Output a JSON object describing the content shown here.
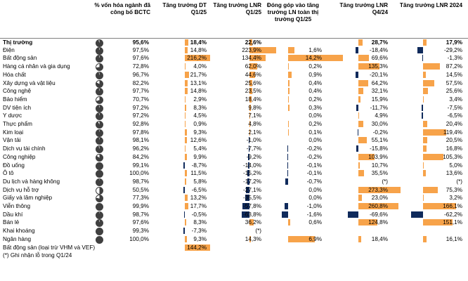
{
  "headers": {
    "pct_cap": "% vốn hóa ngành đã công bố BCTC",
    "rev_growth": "Tăng trưởng DT Q1/25",
    "npat_growth": "Tăng trưởng LNR Q1/25",
    "contribution": "Đóng góp vào tăng trưởng LN toàn thị trường Q1/25",
    "npat_q4": "Tăng trưởng LNR Q4/24",
    "npat_2024": "Tăng trưởng LNR 2024"
  },
  "colors": {
    "positive": "#f7a34a",
    "negative": "#0f2a5b",
    "pie_fill": "#404040"
  },
  "rows": [
    {
      "name": "Thị trường",
      "pct_cap": "95,6%",
      "pct_cap_value": 95.6,
      "dt": "18,4%",
      "dt_value": 18.4,
      "lnr": "22,6%",
      "lnr_value": 22.6,
      "contrib": "",
      "contrib_value": 0,
      "q4": "28,7%",
      "q4_value": 28.7,
      "y24": "17,9%",
      "y24_value": 17.9
    },
    {
      "name": "Điện",
      "pct_cap": "97,5%",
      "pct_cap_value": 97.5,
      "dt": "14,8%",
      "dt_value": 14.8,
      "lnr": "223,9%",
      "lnr_value": 223.9,
      "contrib": "1,6%",
      "contrib_value": 1.6,
      "q4": "-18,4%",
      "q4_value": -18.4,
      "y24": "-29,2%",
      "y24_value": -29.2
    },
    {
      "name": "Bất động sản",
      "pct_cap": "97,6%",
      "pct_cap_value": 97.6,
      "dt": "216,2%",
      "dt_value": 216.2,
      "lnr": "134,4%",
      "lnr_value": 134.4,
      "contrib": "14,2%",
      "contrib_value": 14.2,
      "q4": "69,6%",
      "q4_value": 69.6,
      "y24": "-1,3%",
      "y24_value": -1.3
    },
    {
      "name": "Hàng cá nhân và gia dụng",
      "pct_cap": "72,8%",
      "pct_cap_value": 72.8,
      "dt": "4,0%",
      "dt_value": 4.0,
      "lnr": "62,0%",
      "lnr_value": 62.0,
      "contrib": "0,2%",
      "contrib_value": 0.2,
      "q4": "135,3%",
      "q4_value": 135.3,
      "y24": "87,2%",
      "y24_value": 87.2
    },
    {
      "name": "Hóa chất",
      "pct_cap": "96,7%",
      "pct_cap_value": 96.7,
      "dt": "21,7%",
      "dt_value": 21.7,
      "lnr": "44,6%",
      "lnr_value": 44.6,
      "contrib": "0,9%",
      "contrib_value": 0.9,
      "q4": "-20,1%",
      "q4_value": -20.1,
      "y24": "14,5%",
      "y24_value": 14.5
    },
    {
      "name": "Xây dựng và vật liệu",
      "pct_cap": "82,2%",
      "pct_cap_value": 82.2,
      "dt": "13,1%",
      "dt_value": 13.1,
      "lnr": "25,6%",
      "lnr_value": 25.6,
      "contrib": "0,4%",
      "contrib_value": 0.4,
      "q4": "64,2%",
      "q4_value": 64.2,
      "y24": "57,5%",
      "y24_value": 57.5
    },
    {
      "name": "Công nghệ",
      "pct_cap": "97,7%",
      "pct_cap_value": 97.7,
      "dt": "14,8%",
      "dt_value": 14.8,
      "lnr": "23,5%",
      "lnr_value": 23.5,
      "contrib": "0,4%",
      "contrib_value": 0.4,
      "q4": "32,1%",
      "q4_value": 32.1,
      "y24": "25,6%",
      "y24_value": 25.6
    },
    {
      "name": "Bảo hiểm",
      "pct_cap": "70,7%",
      "pct_cap_value": 70.7,
      "dt": "2,9%",
      "dt_value": 2.9,
      "lnr": "18,4%",
      "lnr_value": 18.4,
      "contrib": "0,2%",
      "contrib_value": 0.2,
      "q4": "15,9%",
      "q4_value": 15.9,
      "y24": "3,4%",
      "y24_value": 3.4
    },
    {
      "name": "DV tiện ích",
      "pct_cap": "97,2%",
      "pct_cap_value": 97.2,
      "dt": "8,3%",
      "dt_value": 8.3,
      "lnr": "9,8%",
      "lnr_value": 9.8,
      "contrib": "0,3%",
      "contrib_value": 0.3,
      "q4": "-11,7%",
      "q4_value": -11.7,
      "y24": "-7,5%",
      "y24_value": -7.5
    },
    {
      "name": "Y dược",
      "pct_cap": "97,2%",
      "pct_cap_value": 97.2,
      "dt": "4,5%",
      "dt_value": 4.5,
      "lnr": "7,1%",
      "lnr_value": 7.1,
      "contrib": "0,0%",
      "contrib_value": 0.0,
      "q4": "4,9%",
      "q4_value": 4.9,
      "y24": "-6,5%",
      "y24_value": -6.5
    },
    {
      "name": "Thực phẩm",
      "pct_cap": "92,8%",
      "pct_cap_value": 92.8,
      "dt": "0,9%",
      "dt_value": 0.9,
      "lnr": "4,8%",
      "lnr_value": 4.8,
      "contrib": "0,2%",
      "contrib_value": 0.2,
      "q4": "30,0%",
      "q4_value": 30.0,
      "y24": "20,4%",
      "y24_value": 20.4
    },
    {
      "name": "Kim loại",
      "pct_cap": "97,8%",
      "pct_cap_value": 97.8,
      "dt": "9,3%",
      "dt_value": 9.3,
      "lnr": "2,1%",
      "lnr_value": 2.1,
      "contrib": "0,1%",
      "contrib_value": 0.1,
      "q4": "-0,2%",
      "q4_value": -0.2,
      "y24": "119,4%",
      "y24_value": 119.4
    },
    {
      "name": "Vận tải",
      "pct_cap": "98,1%",
      "pct_cap_value": 98.1,
      "dt": "12,6%",
      "dt_value": 12.6,
      "lnr": "-1,0%",
      "lnr_value": -1.0,
      "contrib": "0,0%",
      "contrib_value": 0.0,
      "q4": "55,1%",
      "q4_value": 55.1,
      "y24": "20,5%",
      "y24_value": 20.5
    },
    {
      "name": "Dịch vụ tài chính",
      "pct_cap": "96,2%",
      "pct_cap_value": 96.2,
      "dt": "5,4%",
      "dt_value": 5.4,
      "lnr": "-7,7%",
      "lnr_value": -7.7,
      "contrib": "-0,2%",
      "contrib_value": -0.2,
      "q4": "-15,8%",
      "q4_value": -15.8,
      "y24": "16,8%",
      "y24_value": 16.8
    },
    {
      "name": "Công nghiệp",
      "pct_cap": "84,2%",
      "pct_cap_value": 84.2,
      "dt": "9,9%",
      "dt_value": 9.9,
      "lnr": "-9,2%",
      "lnr_value": -9.2,
      "contrib": "-0,2%",
      "contrib_value": -0.2,
      "q4": "103,9%",
      "q4_value": 103.9,
      "y24": "105,3%",
      "y24_value": 105.3
    },
    {
      "name": "Đồ uống",
      "pct_cap": "99,1%",
      "pct_cap_value": 99.1,
      "dt": "-8,7%",
      "dt_value": -8.7,
      "lnr": "-14,0%",
      "lnr_value": -14.0,
      "contrib": "-0,1%",
      "contrib_value": -0.1,
      "q4": "10,7%",
      "q4_value": 10.7,
      "y24": "5,0%",
      "y24_value": 5.0
    },
    {
      "name": "Ô tô",
      "pct_cap": "100,0%",
      "pct_cap_value": 100.0,
      "dt": "11,5%",
      "dt_value": 11.5,
      "lnr": "-15,2%",
      "lnr_value": -15.2,
      "contrib": "-0,1%",
      "contrib_value": -0.1,
      "q4": "35,5%",
      "q4_value": 35.5,
      "y24": "13,6%",
      "y24_value": 13.6
    },
    {
      "name": "Du lịch và hàng không",
      "pct_cap": "98,7%",
      "pct_cap_value": 98.7,
      "dt": "5,8%",
      "dt_value": 5.8,
      "lnr": "-17,2%",
      "lnr_value": -17.2,
      "contrib": "-0,7%",
      "contrib_value": -0.7,
      "q4": "(*)",
      "q4_value": 0,
      "y24": "(*)",
      "y24_value": 0
    },
    {
      "name": "Dịch vụ hỗ trợ",
      "pct_cap": "50,5%",
      "pct_cap_value": 50.5,
      "dt": "-6,5%",
      "dt_value": -6.5,
      "lnr": "-27,1%",
      "lnr_value": -27.1,
      "contrib": "0,0%",
      "contrib_value": 0.0,
      "q4": "273,3%",
      "q4_value": 273.3,
      "y24": "75,3%",
      "y24_value": 75.3
    },
    {
      "name": "Giấy và lâm nghiệp",
      "pct_cap": "77,3%",
      "pct_cap_value": 77.3,
      "dt": "13,2%",
      "dt_value": 13.2,
      "lnr": "-35,5%",
      "lnr_value": -35.5,
      "contrib": "0,0%",
      "contrib_value": 0.0,
      "q4": "23,0%",
      "q4_value": 23.0,
      "y24": "3,2%",
      "y24_value": 3.2
    },
    {
      "name": "Viễn thông",
      "pct_cap": "99,9%",
      "pct_cap_value": 99.9,
      "dt": "17,7%",
      "dt_value": 17.7,
      "lnr": "-57,8%",
      "lnr_value": -57.8,
      "contrib": "-1,0%",
      "contrib_value": -1.0,
      "q4": "260,8%",
      "q4_value": 260.8,
      "y24": "166,1%",
      "y24_value": 166.1
    },
    {
      "name": "Dầu khí",
      "pct_cap": "98,7%",
      "pct_cap_value": 98.7,
      "dt": "-0,5%",
      "dt_value": -0.5,
      "lnr": "-63,8%",
      "lnr_value": -63.8,
      "contrib": "-1,6%",
      "contrib_value": -1.6,
      "q4": "-69,6%",
      "q4_value": -69.6,
      "y24": "-62,2%",
      "y24_value": -62.2
    },
    {
      "name": "Bán lẻ",
      "pct_cap": "97,6%",
      "pct_cap_value": 97.6,
      "dt": "8,3%",
      "dt_value": 8.3,
      "lnr": "36,2%",
      "lnr_value": 36.2,
      "contrib": "0,6%",
      "contrib_value": 0.6,
      "q4": "124,8%",
      "q4_value": 124.8,
      "y24": "151,1%",
      "y24_value": 151.1
    },
    {
      "name": "Khai khoáng",
      "pct_cap": "99,3%",
      "pct_cap_value": 99.3,
      "dt": "-7,3%",
      "dt_value": -7.3,
      "lnr": "(*)",
      "lnr_value": 0,
      "contrib": "",
      "contrib_value": 0,
      "q4": "",
      "q4_value": 0,
      "y24": "",
      "y24_value": 0
    },
    {
      "name": "Ngân hàng",
      "pct_cap": "100,0%",
      "pct_cap_value": 100.0,
      "dt": "9,3%",
      "dt_value": 9.3,
      "lnr": "14,3%",
      "lnr_value": 14.3,
      "contrib": "6,9%",
      "contrib_value": 6.9,
      "q4": "18,4%",
      "q4_value": 18.4,
      "y24": "16,1%",
      "y24_value": 16.1
    }
  ],
  "extra_row": {
    "name": "Bất động sản (loại trừ VHM và VEF)",
    "dt": "144,2%",
    "dt_value": 144.2
  },
  "footnote": "(*) Ghi nhận lỗ trong Q1/24"
}
